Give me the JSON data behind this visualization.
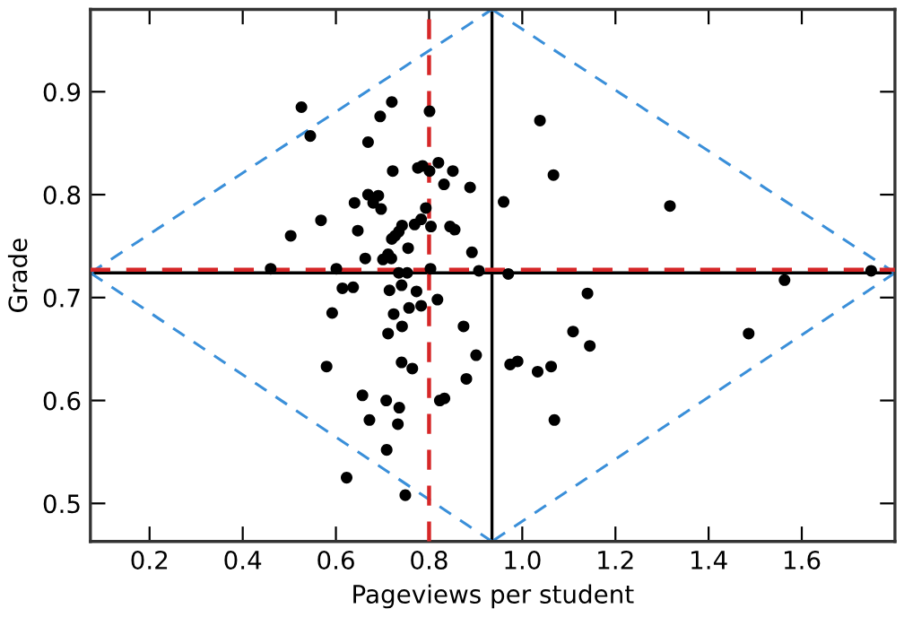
{
  "chart_data": {
    "type": "scatter",
    "xlabel": "Pageviews per student",
    "ylabel": "Grade",
    "xlim": [
      0.073,
      1.8
    ],
    "ylim": [
      0.463,
      0.98
    ],
    "xticks": [
      0.2,
      0.4,
      0.6,
      0.8,
      {
        "value": 1.0,
        "label": "1.0"
      },
      1.2,
      1.4,
      1.6
    ],
    "yticks": [
      0.5,
      0.6,
      0.7,
      0.8,
      0.9
    ],
    "grid": false,
    "marker": "circle",
    "series": [
      {
        "color": "#000000",
        "x": [
          0.526,
          0.545,
          0.695,
          0.72,
          0.801,
          0.669,
          0.722,
          0.776,
          0.786,
          0.801,
          0.82,
          0.851,
          0.832,
          0.888,
          0.64,
          0.669,
          0.691,
          0.68,
          0.697,
          0.793,
          0.568,
          0.503,
          0.647,
          0.742,
          0.735,
          0.727,
          0.72,
          0.769,
          0.783,
          0.804,
          0.845,
          0.855,
          0.755,
          0.663,
          0.701,
          0.712,
          0.719,
          0.892,
          0.46,
          0.601,
          0.803,
          0.907,
          0.735,
          0.753,
          0.614,
          0.637,
          0.715,
          0.741,
          0.773,
          0.818,
          0.592,
          0.724,
          0.757,
          0.783,
          0.712,
          0.742,
          0.874,
          0.58,
          0.741,
          0.764,
          0.901,
          0.88,
          0.657,
          0.708,
          0.736,
          0.823,
          0.833,
          0.672,
          0.733,
          0.709,
          0.623,
          0.749,
          0.96,
          1.038,
          1.067,
          0.97,
          1.317,
          1.14,
          1.563,
          1.749,
          1.109,
          1.145,
          0.974,
          0.99,
          1.033,
          1.062,
          1.069,
          1.486
        ],
        "values": [
          0.885,
          0.857,
          0.876,
          0.89,
          0.881,
          0.851,
          0.823,
          0.826,
          0.828,
          0.823,
          0.831,
          0.823,
          0.81,
          0.807,
          0.792,
          0.8,
          0.799,
          0.792,
          0.786,
          0.787,
          0.775,
          0.76,
          0.765,
          0.77,
          0.764,
          0.76,
          0.757,
          0.771,
          0.776,
          0.769,
          0.769,
          0.766,
          0.748,
          0.738,
          0.737,
          0.742,
          0.738,
          0.744,
          0.728,
          0.728,
          0.728,
          0.726,
          0.724,
          0.724,
          0.709,
          0.71,
          0.707,
          0.712,
          0.706,
          0.698,
          0.685,
          0.684,
          0.69,
          0.692,
          0.665,
          0.672,
          0.672,
          0.633,
          0.637,
          0.631,
          0.644,
          0.621,
          0.605,
          0.6,
          0.593,
          0.6,
          0.602,
          0.581,
          0.577,
          0.552,
          0.525,
          0.508,
          0.793,
          0.872,
          0.819,
          0.723,
          0.789,
          0.704,
          0.717,
          0.726,
          0.667,
          0.653,
          0.635,
          0.638,
          0.628,
          0.633,
          0.581,
          0.665
        ]
      },
      {
        "type": "line",
        "color": "#3a8fd9",
        "line_style": "dashed",
        "marker": "none",
        "x": [
          0.073,
          0.935
        ],
        "values": [
          0.724,
          0.98
        ]
      },
      {
        "type": "line",
        "color": "#3a8fd9",
        "line_style": "dashed",
        "marker": "none",
        "x": [
          0.935,
          1.8
        ],
        "values": [
          0.98,
          0.724
        ]
      },
      {
        "type": "line",
        "color": "#3a8fd9",
        "line_style": "dashed",
        "marker": "none",
        "x": [
          1.8,
          0.935
        ],
        "values": [
          0.724,
          0.463
        ]
      },
      {
        "type": "line",
        "color": "#3a8fd9",
        "line_style": "dashed",
        "marker": "none",
        "x": [
          0.935,
          0.073
        ],
        "values": [
          0.463,
          0.724
        ]
      }
    ],
    "ref_lines": [
      {
        "axis": "x",
        "value": 0.935,
        "color": "#000000",
        "line_style": "solid"
      },
      {
        "axis": "y",
        "value": 0.724,
        "color": "#000000",
        "line_style": "solid"
      },
      {
        "axis": "x",
        "value": 0.8,
        "color": "#d62728",
        "line_style": "dashed"
      },
      {
        "axis": "y",
        "value": 0.727,
        "color": "#d62728",
        "line_style": "dashed"
      }
    ]
  }
}
